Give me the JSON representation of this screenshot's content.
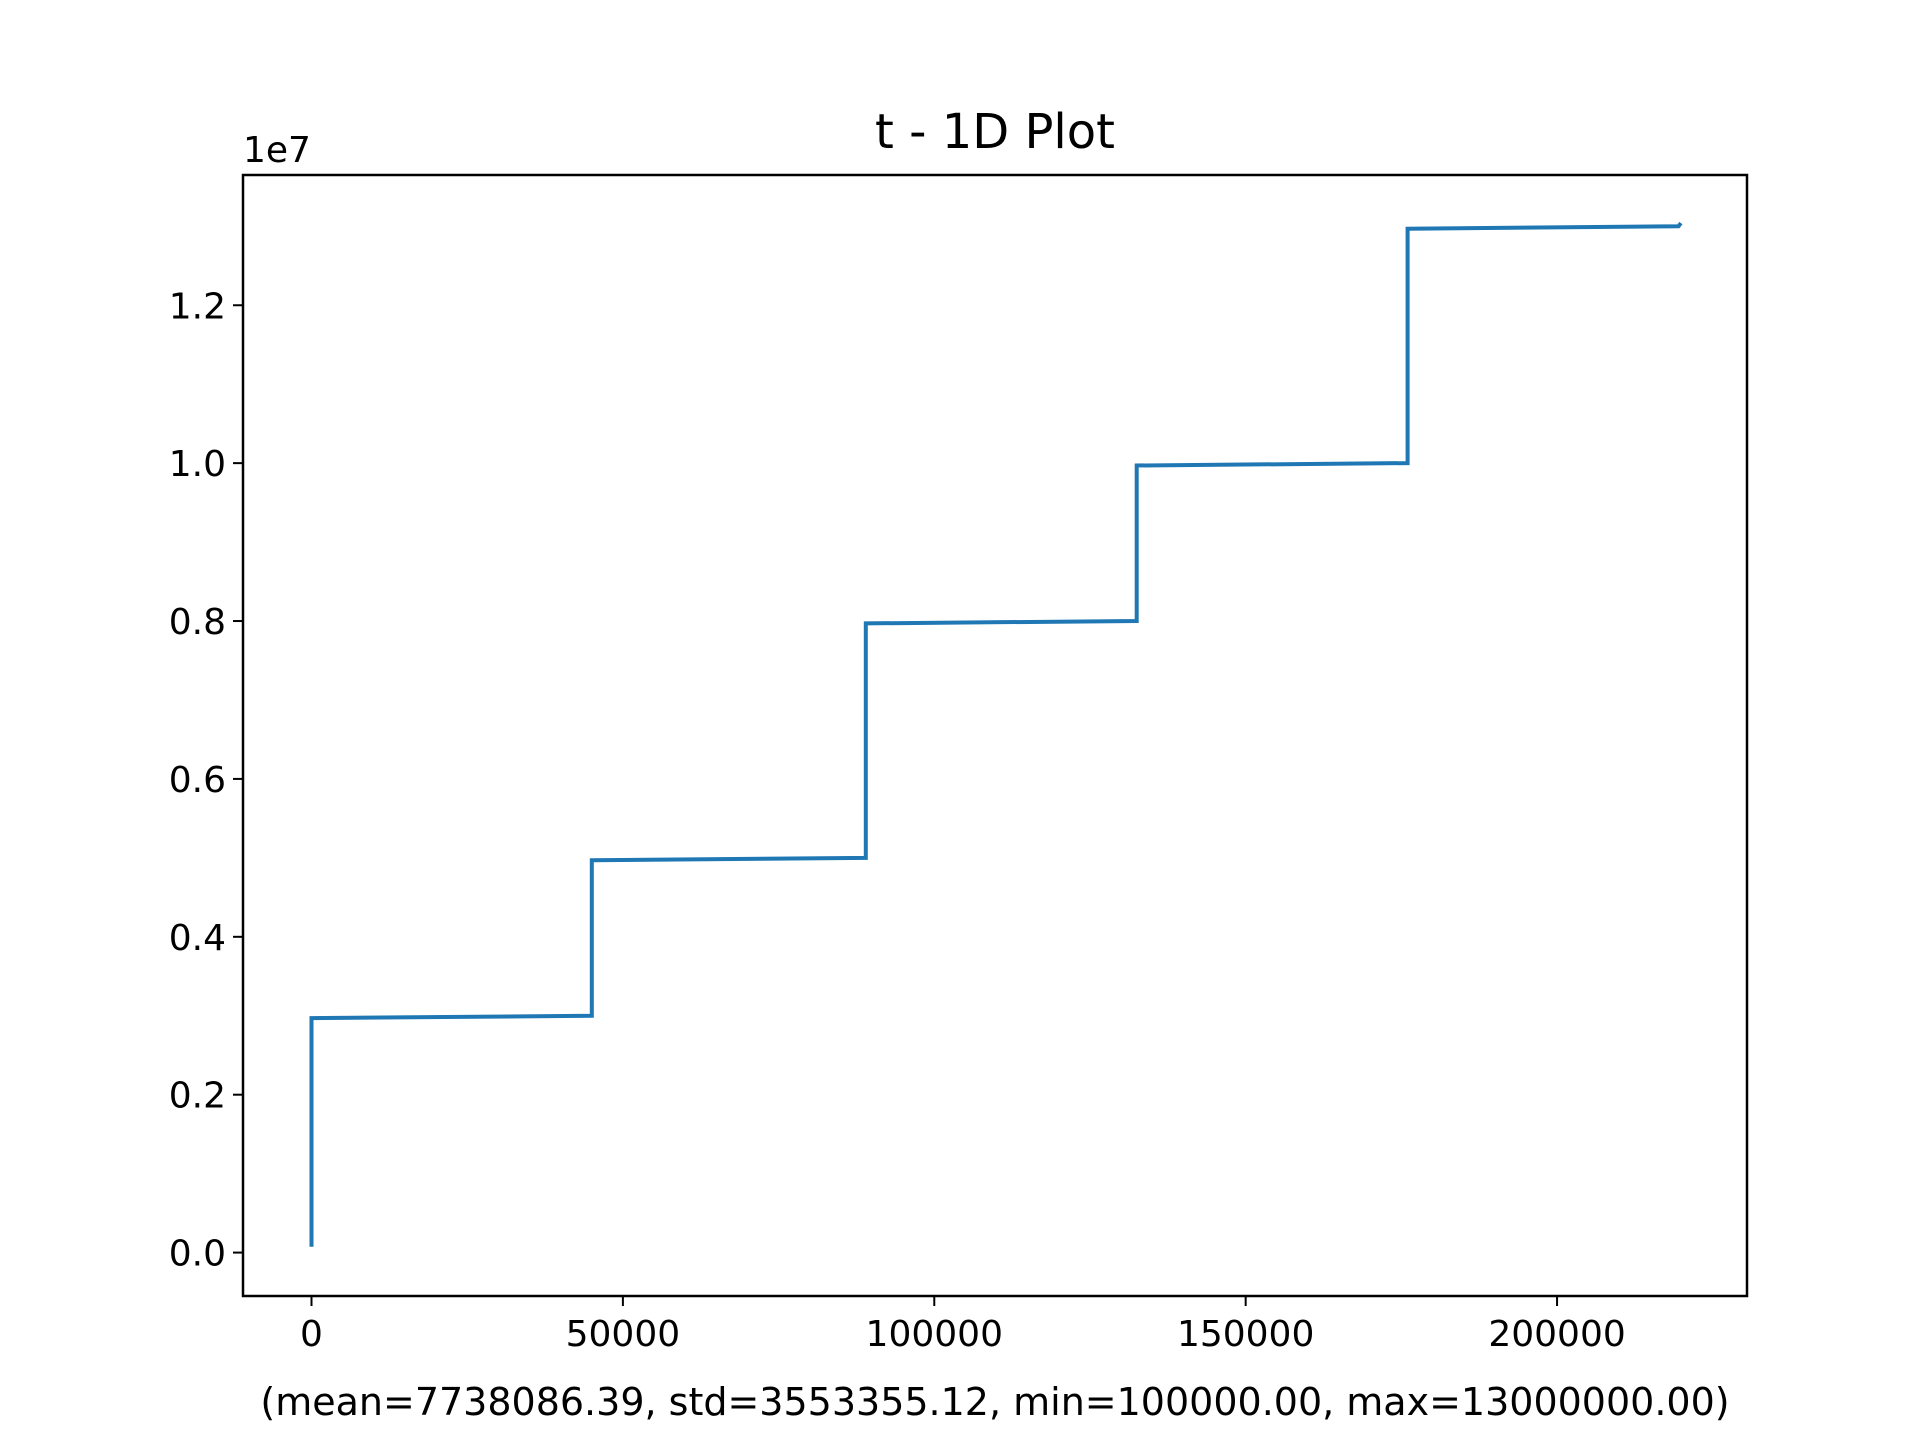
{
  "chart_data": {
    "type": "line",
    "title": "t - 1D Plot",
    "xlabel": "(mean=7738086.39, std=3553355.12, min=100000.00, max=13000000.00)",
    "ylabel": "",
    "y_offset_label": "1e7",
    "xlim": [
      -11000,
      230500
    ],
    "ylim": [
      -0.055,
      1.365
    ],
    "x_ticks": [
      0,
      50000,
      100000,
      150000,
      200000
    ],
    "x_tick_labels": [
      "0",
      "50000",
      "100000",
      "150000",
      "200000"
    ],
    "y_ticks": [
      0.0,
      0.2,
      0.4,
      0.6,
      0.8,
      1.0,
      1.2
    ],
    "y_tick_labels": [
      "0.0",
      "0.2",
      "0.4",
      "0.6",
      "0.8",
      "1.0",
      "1.2"
    ],
    "grid": false,
    "series": [
      {
        "color": "#1f77b4",
        "x": [
          0,
          0,
          45000,
          45000,
          89000,
          89000,
          132500,
          132500,
          176000,
          176000,
          219500,
          219700
        ],
        "y": [
          0.01,
          0.297,
          0.3,
          0.497,
          0.5,
          0.797,
          0.8,
          0.997,
          1.0,
          1.297,
          1.3,
          1.302
        ]
      }
    ]
  }
}
